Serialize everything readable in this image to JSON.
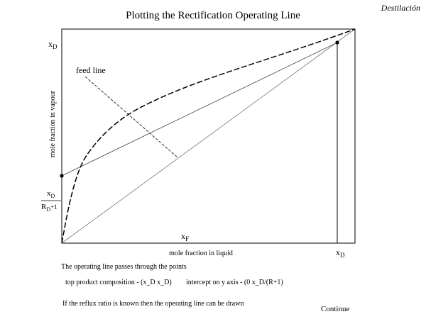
{
  "header": {
    "corner_label": "Destilación",
    "title": "Plotting the Rectification Operating Line"
  },
  "diagram": {
    "y_axis_label": "mole fraction in vapour",
    "x_axis_label": "mole fraction in liquid",
    "feed_line_label": "feed line",
    "xD_symbol": "x",
    "xD_subscript": "D",
    "xF_symbol": "x",
    "xF_subscript": "F",
    "intercept_num_symbol": "x",
    "intercept_num_subscript": "D",
    "intercept_den_symbol": "R",
    "intercept_den_subscript": "D",
    "intercept_den_tail": "+1"
  },
  "notes": {
    "line1": "The operating line passes through the points",
    "line2": "top product composition - (x_D x_D)",
    "line3": "intercept on y axis - (0 x_D/(R+1)",
    "line4": "If the reflux ratio is known then the operating line can be drawn"
  },
  "nav": {
    "continue_label": "Continue"
  },
  "colors": {
    "ink": "#000000",
    "background": "#ffffff",
    "diagonal": "#777777"
  }
}
